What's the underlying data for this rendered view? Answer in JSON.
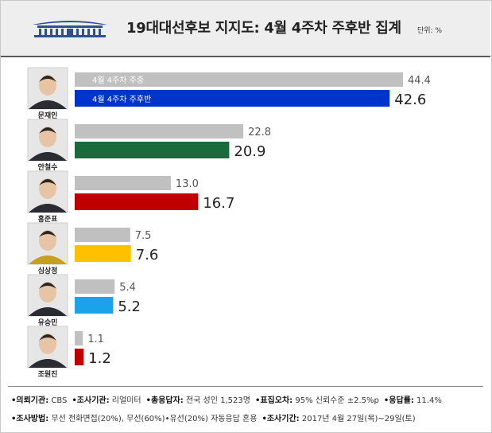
{
  "title": "19대대선후보 지지도: 4월 4주차 주후반 집계",
  "unit": "단위: %",
  "colors": {
    "prev_bar": "#c0c0c0",
    "candidates": [
      "#0033cc",
      "#1a6b3b",
      "#c00000",
      "#ffc000",
      "#1aa3e8",
      "#c00000"
    ]
  },
  "chart_data": {
    "type": "bar",
    "orientation": "horizontal",
    "categories": [
      "문재인",
      "안철수",
      "홍준표",
      "심상정",
      "유승민",
      "조원진"
    ],
    "series": [
      {
        "name": "4월 4주차 주중",
        "values": [
          44.4,
          22.8,
          13.0,
          7.5,
          5.4,
          1.1
        ]
      },
      {
        "name": "4월 4주차 주후반",
        "values": [
          42.6,
          20.9,
          16.7,
          7.6,
          5.2,
          1.2
        ]
      }
    ],
    "value_labels": {
      "prev": [
        "44.4",
        "22.8",
        "13.0",
        "7.5",
        "5.4",
        "1.1"
      ],
      "curr": [
        "42.6",
        "20.9",
        "16.7",
        "7.6",
        "5.2",
        "1.2"
      ]
    },
    "xlim": [
      0,
      44.4
    ]
  },
  "footer": {
    "line1": [
      {
        "k": "•의뢰기관:",
        "v": "CBS"
      },
      {
        "k": "•조사기관:",
        "v": "리얼미터"
      },
      {
        "k": "•총응답자:",
        "v": "전국 성인 1,523명"
      },
      {
        "k": "•표집오차:",
        "v": "95% 신뢰수준 ±2.5%p"
      },
      {
        "k": "•응답률:",
        "v": "11.4%"
      }
    ],
    "line2": [
      {
        "k": "•조사방법:",
        "v": "무선 전화면접(20%), 무선(60%)•유선(20%) 자동응답 혼용"
      },
      {
        "k": "•조사기간:",
        "v": "2017년 4월 27일(목)~29일(토)"
      }
    ]
  }
}
